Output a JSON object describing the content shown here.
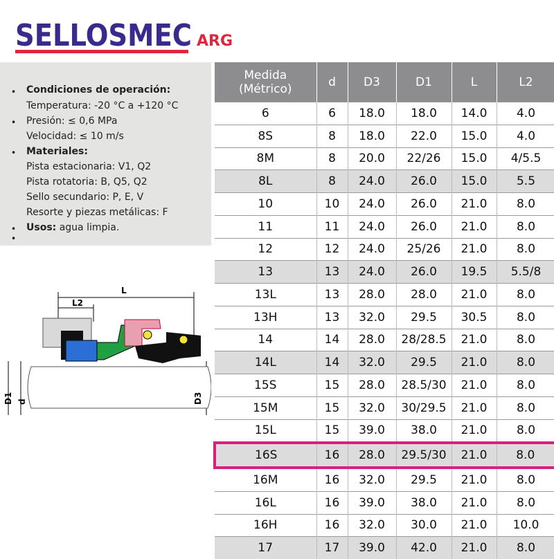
{
  "header": {
    "logo": "SELLOSMEC",
    "logo_suffix": "ARG"
  },
  "specs": {
    "conditions_title": "Condiciones de operación:",
    "temperature": "Temperatura: -20 °C a +120 °C",
    "pressure": "Presión: ≤ 0,6 MPa",
    "speed": "Velocidad: ≤ 10 m/s",
    "materials_title": "Materiales:",
    "materials": [
      "Pista estacionaria: V1, Q2",
      "Pista rotatoria: B, Q5, Q2",
      "Sello secundario: P, E, V",
      "Resorte y piezas metálicas: F"
    ],
    "uses_title": "Usos:",
    "uses": "agua limpia."
  },
  "diagram": {
    "L": "L",
    "L2": "L2",
    "D1": "D1",
    "d": "d",
    "D3": "D3"
  },
  "table": {
    "headers": [
      "Medida (Métrico)",
      "d",
      "D3",
      "D1",
      "L",
      "L2"
    ],
    "rows": [
      [
        "6",
        "6",
        "18.0",
        "18.0",
        "14.0",
        "4.0"
      ],
      [
        "8S",
        "8",
        "18.0",
        "22.0",
        "15.0",
        "4.0"
      ],
      [
        "8M",
        "8",
        "20.0",
        "22/26",
        "15.0",
        "4/5.5"
      ],
      [
        "8L",
        "8",
        "24.0",
        "26.0",
        "15.0",
        "5.5"
      ],
      [
        "10",
        "10",
        "24.0",
        "26.0",
        "21.0",
        "8.0"
      ],
      [
        "11",
        "11",
        "24.0",
        "26.0",
        "21.0",
        "8.0"
      ],
      [
        "12",
        "12",
        "24.0",
        "25/26",
        "21.0",
        "8.0"
      ],
      [
        "13",
        "13",
        "24.0",
        "26.0",
        "19.5",
        "5.5/8"
      ],
      [
        "13L",
        "13",
        "28.0",
        "28.0",
        "21.0",
        "8.0"
      ],
      [
        "13H",
        "13",
        "32.0",
        "29.5",
        "30.5",
        "8.0"
      ],
      [
        "14",
        "14",
        "28.0",
        "28/28.5",
        "21.0",
        "8.0"
      ],
      [
        "14L",
        "14",
        "32.0",
        "29.5",
        "21.0",
        "8.0"
      ],
      [
        "15S",
        "15",
        "28.0",
        "28.5/30",
        "21.0",
        "8.0"
      ],
      [
        "15M",
        "15",
        "32.0",
        "30/29.5",
        "21.0",
        "8.0"
      ],
      [
        "15L",
        "15",
        "39.0",
        "38.0",
        "21.0",
        "8.0"
      ],
      [
        "16S",
        "16",
        "28.0",
        "29.5/30",
        "21.0",
        "8.0"
      ],
      [
        "16M",
        "16",
        "32.0",
        "29.5",
        "21.0",
        "8.0"
      ],
      [
        "16L",
        "16",
        "39.0",
        "38.0",
        "21.0",
        "8.0"
      ],
      [
        "16H",
        "16",
        "32.0",
        "30.0",
        "21.0",
        "10.0"
      ],
      [
        "17",
        "17",
        "39.0",
        "42.0",
        "21.0",
        "8.0"
      ]
    ]
  }
}
